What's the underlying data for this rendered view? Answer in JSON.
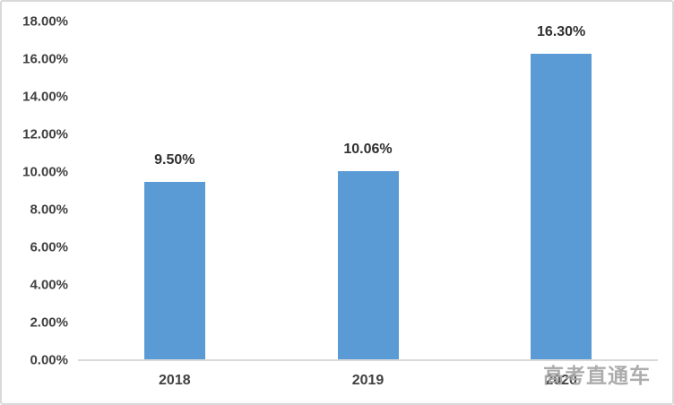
{
  "chart_data": {
    "type": "bar",
    "categories": [
      "2018",
      "2019",
      "2020"
    ],
    "values": [
      9.5,
      10.06,
      16.3
    ],
    "data_labels": [
      "9.50%",
      "10.06%",
      "16.30%"
    ],
    "title": "",
    "xlabel": "",
    "ylabel": "",
    "ylim": [
      0,
      18
    ],
    "ytick_step": 2,
    "ytick_labels": [
      "0.00%",
      "2.00%",
      "4.00%",
      "6.00%",
      "8.00%",
      "10.00%",
      "12.00%",
      "14.00%",
      "16.00%",
      "18.00%"
    ],
    "grid": false,
    "legend": "none",
    "bar_color": "#5B9BD5"
  },
  "watermark": {
    "text": "高考直通车"
  },
  "colors": {
    "background": "#FFFFFF",
    "border": "#D9D9D9",
    "axis_line": "#D9D9D9",
    "bar": "#5B9BD5",
    "tick_label": "#404040",
    "data_label": "#303030",
    "watermark": "#A6A6A6"
  }
}
